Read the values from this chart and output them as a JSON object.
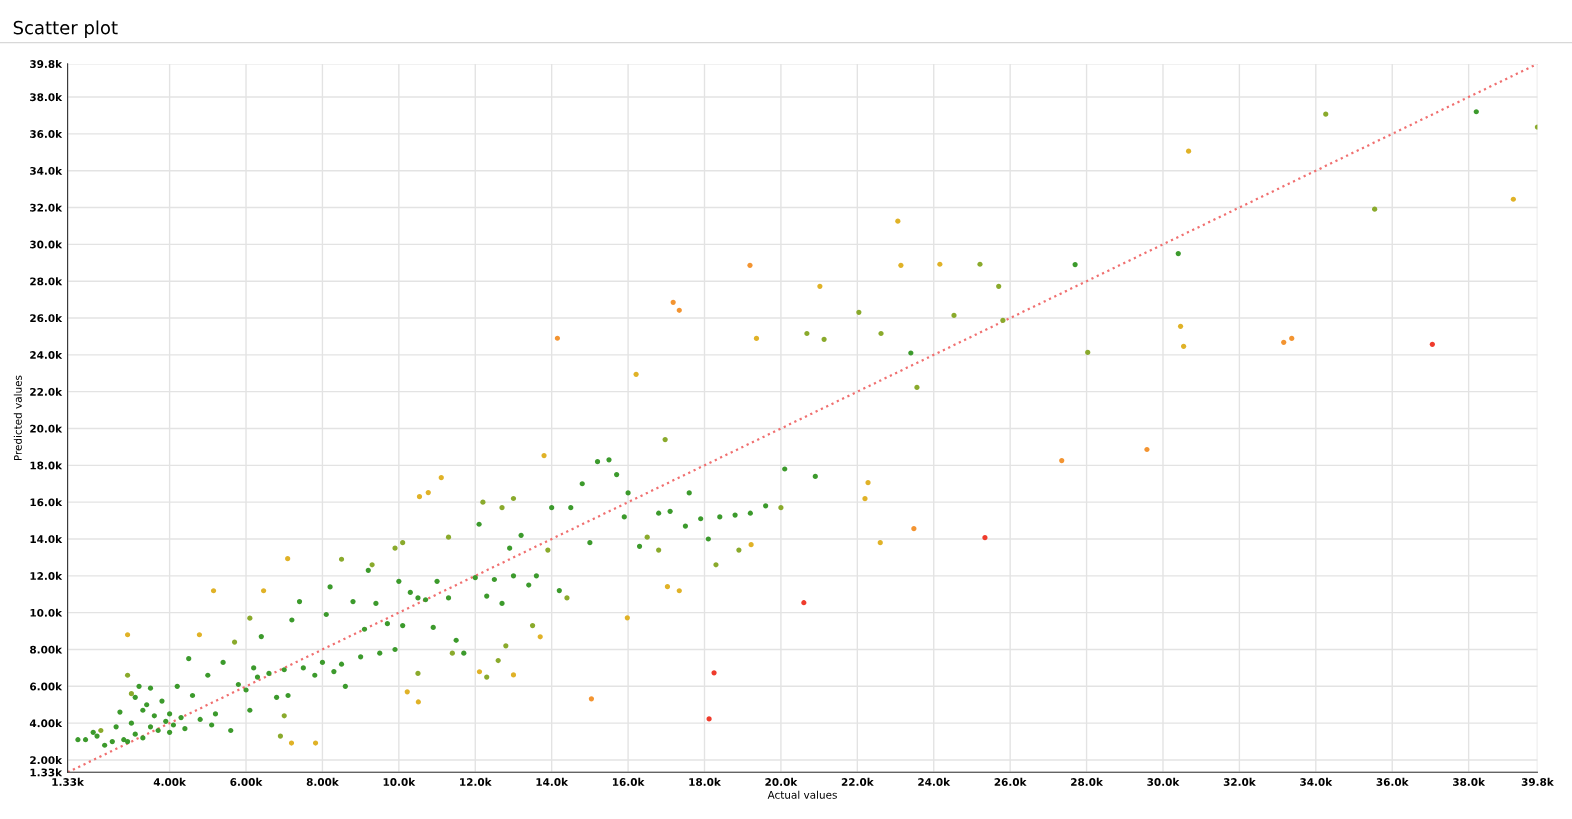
{
  "chart_data": {
    "type": "scatter",
    "title": "Scatter plot",
    "xlabel": "Actual values",
    "ylabel": "Predicted values",
    "xlim": [
      1330,
      39800
    ],
    "ylim": [
      1330,
      39800
    ],
    "xticks": [
      {
        "value": 1330,
        "label": "1.33k"
      },
      {
        "value": 4000,
        "label": "4.00k"
      },
      {
        "value": 6000,
        "label": "6.00k"
      },
      {
        "value": 8000,
        "label": "8.00k"
      },
      {
        "value": 10000,
        "label": "10.0k"
      },
      {
        "value": 12000,
        "label": "12.0k"
      },
      {
        "value": 14000,
        "label": "14.0k"
      },
      {
        "value": 16000,
        "label": "16.0k"
      },
      {
        "value": 18000,
        "label": "18.0k"
      },
      {
        "value": 20000,
        "label": "20.0k"
      },
      {
        "value": 22000,
        "label": "22.0k"
      },
      {
        "value": 24000,
        "label": "24.0k"
      },
      {
        "value": 26000,
        "label": "26.0k"
      },
      {
        "value": 28000,
        "label": "28.0k"
      },
      {
        "value": 30000,
        "label": "30.0k"
      },
      {
        "value": 32000,
        "label": "32.0k"
      },
      {
        "value": 34000,
        "label": "34.0k"
      },
      {
        "value": 36000,
        "label": "36.0k"
      },
      {
        "value": 38000,
        "label": "38.0k"
      },
      {
        "value": 39800,
        "label": "39.8k"
      }
    ],
    "yticks": [
      {
        "value": 1330,
        "label": "1.33k"
      },
      {
        "value": 2000,
        "label": "2.00k"
      },
      {
        "value": 4000,
        "label": "4.00k"
      },
      {
        "value": 6000,
        "label": "6.00k"
      },
      {
        "value": 8000,
        "label": "8.00k"
      },
      {
        "value": 10000,
        "label": "10.0k"
      },
      {
        "value": 12000,
        "label": "12.0k"
      },
      {
        "value": 14000,
        "label": "14.0k"
      },
      {
        "value": 16000,
        "label": "16.0k"
      },
      {
        "value": 18000,
        "label": "18.0k"
      },
      {
        "value": 20000,
        "label": "20.0k"
      },
      {
        "value": 22000,
        "label": "22.0k"
      },
      {
        "value": 24000,
        "label": "24.0k"
      },
      {
        "value": 26000,
        "label": "26.0k"
      },
      {
        "value": 28000,
        "label": "28.0k"
      },
      {
        "value": 30000,
        "label": "30.0k"
      },
      {
        "value": 32000,
        "label": "32.0k"
      },
      {
        "value": 34000,
        "label": "34.0k"
      },
      {
        "value": 36000,
        "label": "36.0k"
      },
      {
        "value": 38000,
        "label": "38.0k"
      },
      {
        "value": 39800,
        "label": "39.8k"
      }
    ],
    "grid": true,
    "marker": "circle",
    "series": [
      {
        "type": "line",
        "color": "#f07070",
        "line_style": "dotted",
        "marker": "none",
        "x": [
          1330,
          39800
        ],
        "values": [
          1330,
          39800
        ]
      },
      {
        "color": "#3c9a2c",
        "x": [
          1600,
          1800,
          2000,
          2100,
          2300,
          2500,
          2600,
          2700,
          2800,
          2900,
          3000,
          3100,
          3100,
          3200,
          3300,
          3300,
          3400,
          3500,
          3500,
          3600,
          3700,
          3800,
          3900,
          4000,
          4000,
          4100,
          4200,
          4300,
          4400,
          4500,
          4600,
          4800,
          5000,
          5100,
          5200,
          5400,
          5600,
          5800,
          6000,
          6100,
          6200,
          6300,
          6400,
          6600,
          6800,
          7000,
          7100,
          7200,
          7400,
          7500,
          7800,
          8000,
          8100,
          8200,
          8300,
          8500,
          8600,
          8800,
          9000,
          9100,
          9200,
          9400,
          9500,
          9700,
          9900,
          10000,
          10100,
          10300,
          10500,
          10700,
          10900,
          11000,
          11300,
          11500,
          11700,
          12000,
          12100,
          12300,
          12500,
          12700,
          12900,
          13000,
          13200,
          13400,
          13600,
          14000,
          14200,
          14500,
          14800,
          15000,
          15200,
          15500,
          15700,
          15900,
          16000,
          16300,
          16800,
          17100,
          17500,
          17600,
          17900,
          18100,
          18400,
          18800,
          19200,
          19600,
          20100,
          20900,
          23400,
          27700,
          30400,
          38200
        ],
        "values": [
          3100,
          3100,
          3500,
          3300,
          2800,
          3000,
          3800,
          4600,
          3100,
          3000,
          4000,
          3400,
          5400,
          6000,
          4700,
          3200,
          5000,
          3800,
          5900,
          4400,
          3600,
          5200,
          4100,
          3500,
          4500,
          3900,
          6000,
          4300,
          3700,
          7500,
          5500,
          4200,
          6600,
          3900,
          4500,
          7300,
          3600,
          6100,
          5800,
          4700,
          7000,
          6500,
          8700,
          6700,
          5400,
          6900,
          5500,
          9600,
          10600,
          7000,
          6600,
          7300,
          9900,
          11400,
          6800,
          7200,
          6000,
          10600,
          7600,
          9100,
          12300,
          10500,
          7800,
          9400,
          8000,
          11700,
          9300,
          11100,
          10800,
          10700,
          9200,
          11700,
          10800,
          8500,
          7800,
          11900,
          14800,
          10900,
          11800,
          10500,
          13500,
          12000,
          14200,
          11500,
          12000,
          15700,
          11200,
          15700,
          17000,
          13800,
          18200,
          18300,
          17500,
          15200,
          16500,
          13600,
          15400,
          15500,
          14700,
          16500,
          15100,
          14000,
          15200,
          15300,
          15400,
          15800,
          17800,
          17400,
          24100,
          28900,
          29500,
          37200
        ]
      },
      {
        "color": "#8aaa2c",
        "x": [
          2200,
          2900,
          3000,
          5700,
          6100,
          6900,
          7000,
          8500,
          9300,
          9900,
          10100,
          10500,
          11300,
          11400,
          12200,
          12300,
          12600,
          12700,
          12800,
          13000,
          13500,
          13900,
          14400,
          16500,
          16800,
          16970,
          18300,
          18900,
          20000,
          20680,
          21130,
          22040,
          22620,
          23560,
          24530,
          25210,
          25700,
          25810,
          28030,
          34260,
          35540,
          39800
        ],
        "values": [
          3600,
          6600,
          5600,
          8400,
          9700,
          3300,
          4400,
          12900,
          12600,
          13500,
          13800,
          6700,
          14100,
          7800,
          16000,
          6500,
          7400,
          15700,
          8200,
          16200,
          9300,
          13400,
          10800,
          14100,
          13400,
          19400,
          12600,
          13400,
          15700,
          25160,
          24840,
          26310,
          25160,
          22230,
          26140,
          28920,
          27720,
          25870,
          24130,
          37070,
          31910,
          36370
        ]
      },
      {
        "color": "#e0b227",
        "x": [
          2900,
          4780,
          5150,
          6460,
          7090,
          7190,
          7820,
          10220,
          10510,
          10540,
          10770,
          11110,
          12110,
          13000,
          13700,
          13800,
          15980,
          16210,
          17030,
          17340,
          19220,
          19360,
          21020,
          22200,
          22280,
          22600,
          23060,
          23140,
          24160,
          30460,
          30540,
          30670,
          39170
        ],
        "values": [
          8800,
          8800,
          11190,
          11190,
          12930,
          2920,
          2920,
          5700,
          5150,
          16300,
          16520,
          17330,
          6790,
          6620,
          8690,
          18530,
          9720,
          22940,
          11410,
          11190,
          13690,
          24890,
          27720,
          16190,
          17060,
          13800,
          31260,
          28860,
          28920,
          25550,
          24460,
          35060,
          32450
        ]
      },
      {
        "color": "#f39431",
        "x": [
          14150,
          15040,
          17180,
          17340,
          19190,
          23480,
          27350,
          29580,
          33160,
          33370
        ],
        "values": [
          24900,
          5320,
          26850,
          26420,
          28860,
          14560,
          18260,
          18860,
          24680,
          24890
        ]
      },
      {
        "color": "#ef3b2c",
        "x": [
          18120,
          18250,
          20600,
          25340,
          37050
        ],
        "values": [
          4230,
          6730,
          10540,
          14070,
          24570
        ]
      }
    ]
  }
}
